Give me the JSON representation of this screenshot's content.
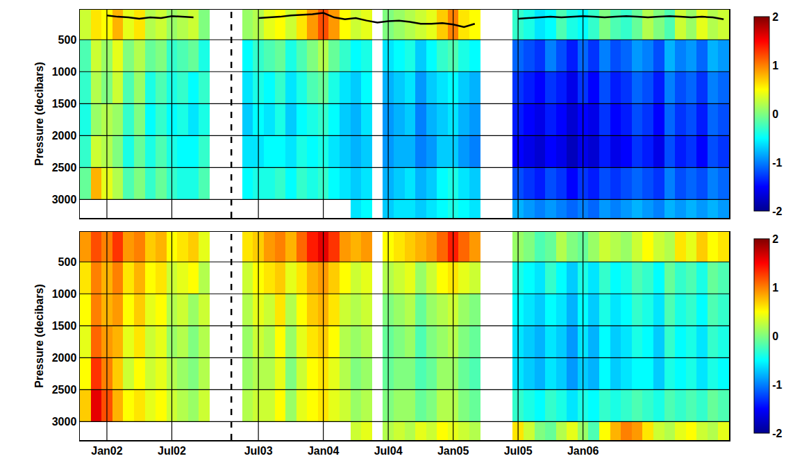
{
  "chart_data": [
    {
      "type": "heatmap",
      "tick_labels": "y",
      "grid": true,
      "ylabel": "Pressure (decibars)",
      "categories": [
        null,
        null,
        "Jan02",
        null,
        null,
        null,
        null,
        null,
        "Jul02",
        null,
        null,
        null,
        null,
        null,
        null,
        null,
        "Jul03",
        null,
        null,
        null,
        null,
        null,
        "Jan04",
        null,
        null,
        null,
        null,
        null,
        "Jul04",
        null,
        null,
        null,
        null,
        null,
        "Jan05",
        null,
        null,
        null,
        null,
        null,
        "Jul05",
        null,
        null,
        null,
        null,
        null,
        "Jan06",
        null,
        null,
        null,
        null,
        null,
        null,
        null,
        null,
        null,
        null,
        null,
        null,
        null
      ],
      "y": [
        250,
        750,
        1250,
        1750,
        2250,
        2750,
        3250
      ],
      "ylim": [
        3290,
        30
      ],
      "yticks": [
        500,
        1000,
        1500,
        2000,
        2500,
        3000
      ],
      "colorbar_range": [
        -2,
        2
      ],
      "colorbar_ticks": [
        -2,
        -1,
        0,
        1,
        2
      ],
      "z": [
        [
          0.3,
          0.6,
          0.5,
          0.8,
          0.4,
          0.6,
          0.2,
          0.3,
          0.1,
          0.2,
          0.3,
          0.0,
          null,
          null,
          null,
          0.1,
          0.2,
          0.4,
          0.5,
          0.3,
          0.6,
          0.9,
          1.2,
          0.9,
          0.5,
          0.3,
          0.4,
          null,
          0.0,
          0.1,
          0.2,
          0.3,
          0.4,
          0.7,
          1.0,
          0.6,
          0.5,
          null,
          null,
          null,
          -0.3,
          -0.4,
          -0.6,
          -0.5,
          -0.2,
          -0.4,
          -0.5,
          -0.3,
          0.0,
          -0.2,
          -0.3,
          -0.1,
          0.2,
          0.0,
          -0.2,
          0.3,
          0.1,
          0.4,
          0.2,
          0.3
        ],
        [
          -0.2,
          0.3,
          0.1,
          0.4,
          0.0,
          0.2,
          -0.1,
          0.0,
          -0.3,
          -0.2,
          -0.1,
          -0.4,
          null,
          null,
          null,
          -0.5,
          -0.3,
          -0.2,
          -0.1,
          -0.4,
          -0.2,
          0.0,
          0.2,
          -0.1,
          -0.3,
          -0.5,
          -0.4,
          null,
          -0.6,
          -0.5,
          -0.4,
          -0.7,
          -0.5,
          -0.3,
          -0.2,
          -0.4,
          -0.5,
          null,
          null,
          null,
          -1.1,
          -1.2,
          -1.3,
          -1.0,
          -1.2,
          -1.4,
          -1.1,
          -1.3,
          -1.0,
          -1.2,
          -1.1,
          -0.9,
          -1.0,
          -1.2,
          -0.8,
          -1.0,
          -0.9,
          -1.1,
          -0.8,
          -0.9
        ],
        [
          -0.3,
          0.2,
          0.0,
          0.3,
          -0.2,
          0.1,
          -0.4,
          -0.2,
          -0.4,
          -0.3,
          -0.5,
          -0.3,
          null,
          null,
          null,
          -0.6,
          -0.4,
          -0.5,
          -0.3,
          -0.6,
          -0.4,
          -0.2,
          -0.1,
          -0.4,
          -0.6,
          -0.7,
          -0.5,
          null,
          -0.8,
          -0.7,
          -0.6,
          -0.9,
          -0.7,
          -0.6,
          -0.5,
          -0.7,
          -0.8,
          null,
          null,
          null,
          -1.3,
          -1.4,
          -1.5,
          -1.3,
          -1.4,
          -1.6,
          -1.3,
          -1.5,
          -1.2,
          -1.4,
          -1.3,
          -1.1,
          -1.2,
          -1.4,
          -1.0,
          -1.2,
          -1.1,
          -1.3,
          -1.0,
          -1.1
        ],
        [
          -0.4,
          0.1,
          0.2,
          0.1,
          -0.3,
          0.0,
          -0.5,
          -0.3,
          -0.5,
          -0.4,
          -0.6,
          -0.4,
          null,
          null,
          null,
          -0.7,
          -0.5,
          -0.6,
          -0.4,
          -0.7,
          -0.5,
          -0.4,
          -0.3,
          -0.5,
          -0.7,
          -0.8,
          -0.6,
          null,
          -0.9,
          -0.8,
          -0.7,
          -1.0,
          -0.8,
          -0.7,
          -0.6,
          -0.8,
          -0.9,
          null,
          null,
          null,
          -1.4,
          -1.5,
          -1.6,
          -1.4,
          -1.5,
          -1.7,
          -1.5,
          -1.6,
          -1.3,
          -1.5,
          -1.4,
          -1.2,
          -1.3,
          -1.5,
          -1.1,
          -1.3,
          -1.2,
          -1.4,
          -1.1,
          -1.2
        ],
        [
          -0.3,
          0.3,
          0.2,
          0.0,
          -0.4,
          -0.1,
          -0.4,
          -0.2,
          -0.4,
          -0.5,
          -0.5,
          -0.3,
          null,
          null,
          null,
          -0.6,
          -0.6,
          -0.5,
          -0.5,
          -0.6,
          -0.4,
          -0.5,
          -0.4,
          -0.6,
          -0.7,
          -0.8,
          -0.7,
          null,
          -0.9,
          -0.8,
          -0.8,
          -1.0,
          -0.9,
          -0.7,
          -0.7,
          -0.9,
          -1.0,
          null,
          null,
          null,
          -1.5,
          -1.6,
          -1.7,
          -1.5,
          -1.6,
          -1.8,
          -1.6,
          -1.7,
          -1.4,
          -1.6,
          -1.5,
          -1.3,
          -1.4,
          -1.6,
          -1.2,
          -1.4,
          -1.3,
          -1.5,
          -1.2,
          -1.3
        ],
        [
          -0.1,
          0.8,
          0.4,
          0.2,
          -0.2,
          0.0,
          -0.3,
          -0.1,
          -0.3,
          -0.4,
          -0.4,
          -0.2,
          null,
          null,
          null,
          -0.5,
          -0.4,
          -0.4,
          -0.3,
          -0.5,
          -0.3,
          -0.4,
          -0.3,
          -0.5,
          -0.6,
          -0.7,
          -0.6,
          null,
          -0.8,
          -0.7,
          -0.6,
          -0.8,
          -0.7,
          -0.5,
          -0.4,
          -0.6,
          -0.7,
          null,
          null,
          null,
          -1.2,
          -1.3,
          -1.4,
          -1.2,
          -1.3,
          -1.5,
          -1.3,
          -1.4,
          -1.2,
          -1.3,
          -1.2,
          -1.1,
          -1.2,
          -1.3,
          -1.0,
          -1.2,
          -1.1,
          -1.2,
          -1.0,
          -1.1
        ],
        [
          null,
          null,
          null,
          null,
          null,
          null,
          null,
          null,
          null,
          null,
          null,
          null,
          null,
          null,
          null,
          null,
          null,
          null,
          null,
          null,
          null,
          null,
          null,
          null,
          null,
          -0.6,
          -0.5,
          null,
          -0.7,
          -0.6,
          -0.6,
          -0.7,
          -0.6,
          -0.5,
          -0.4,
          -0.5,
          -0.6,
          null,
          null,
          null,
          -0.8,
          -0.9,
          -1.0,
          -0.9,
          -1.0,
          -1.1,
          -1.0,
          -1.1,
          -0.9,
          -1.0,
          -0.9,
          -0.8,
          -0.9,
          -1.0,
          -0.8,
          -0.9,
          -0.8,
          -0.9,
          -0.8,
          -0.9
        ]
      ],
      "series": [
        {
          "type": "line",
          "color": "#000000",
          "values": [
            null,
            null,
            120,
            140,
            150,
            170,
            150,
            160,
            130,
            140,
            150,
            null,
            null,
            null,
            null,
            null,
            160,
            150,
            140,
            120,
            110,
            100,
            80,
            150,
            180,
            160,
            200,
            230,
            210,
            200,
            220,
            250,
            250,
            240,
            260,
            300,
            250,
            null,
            null,
            null,
            170,
            160,
            150,
            140,
            150,
            140,
            130,
            140,
            150,
            140,
            130,
            140,
            150,
            140,
            130,
            140,
            150,
            140,
            150,
            180
          ]
        }
      ]
    },
    {
      "type": "heatmap",
      "grid": true,
      "ylabel": "Pressure (decibars)",
      "categories": [
        null,
        null,
        "Jan02",
        null,
        null,
        null,
        null,
        null,
        "Jul02",
        null,
        null,
        null,
        null,
        null,
        null,
        null,
        "Jul03",
        null,
        null,
        null,
        null,
        null,
        "Jan04",
        null,
        null,
        null,
        null,
        null,
        "Jul04",
        null,
        null,
        null,
        null,
        null,
        "Jan05",
        null,
        null,
        null,
        null,
        null,
        "Jul05",
        null,
        null,
        null,
        null,
        null,
        "Jan06",
        null,
        null,
        null,
        null,
        null,
        null,
        null,
        null,
        null,
        null,
        null,
        null,
        null
      ],
      "y": [
        250,
        750,
        1250,
        1750,
        2250,
        2750,
        3250
      ],
      "ylim": [
        3290,
        30
      ],
      "yticks": [
        500,
        1000,
        1500,
        2000,
        2500,
        3000
      ],
      "colorbar_range": [
        -2,
        2
      ],
      "colorbar_ticks": [
        -2,
        -1,
        0,
        1,
        2
      ],
      "z": [
        [
          0.9,
          1.2,
          1.0,
          1.3,
          0.9,
          1.0,
          0.7,
          0.8,
          0.5,
          0.6,
          0.7,
          0.4,
          null,
          null,
          null,
          0.6,
          0.7,
          0.9,
          1.0,
          0.8,
          1.1,
          1.4,
          1.6,
          1.3,
          0.9,
          0.8,
          0.9,
          null,
          0.5,
          0.6,
          0.7,
          0.8,
          0.9,
          1.1,
          1.4,
          1.1,
          0.9,
          null,
          null,
          null,
          0.1,
          0.0,
          -0.2,
          -0.1,
          0.2,
          0.0,
          -0.1,
          0.1,
          0.3,
          0.2,
          0.1,
          0.3,
          0.5,
          0.3,
          0.2,
          0.6,
          0.4,
          0.7,
          0.5,
          0.6
        ],
        [
          0.6,
          1.0,
          0.8,
          1.0,
          0.6,
          0.8,
          0.5,
          0.6,
          0.3,
          0.4,
          0.5,
          0.2,
          null,
          null,
          null,
          0.3,
          0.5,
          0.6,
          0.7,
          0.4,
          0.6,
          0.8,
          0.9,
          0.7,
          0.5,
          0.3,
          0.4,
          null,
          0.2,
          0.3,
          0.4,
          0.1,
          0.3,
          0.5,
          0.6,
          0.4,
          0.3,
          null,
          null,
          null,
          -0.4,
          -0.5,
          -0.6,
          -0.3,
          -0.5,
          -0.7,
          -0.4,
          -0.6,
          -0.3,
          -0.5,
          -0.4,
          -0.2,
          -0.3,
          -0.5,
          -0.1,
          -0.3,
          -0.2,
          -0.4,
          -0.1,
          -0.2
        ],
        [
          0.5,
          1.0,
          0.8,
          0.9,
          0.5,
          0.7,
          0.4,
          0.5,
          0.2,
          0.3,
          0.1,
          0.3,
          null,
          null,
          null,
          0.2,
          0.4,
          0.3,
          0.6,
          0.2,
          0.5,
          0.7,
          0.8,
          0.6,
          0.3,
          0.2,
          0.3,
          null,
          0.0,
          0.1,
          0.2,
          -0.1,
          0.1,
          0.2,
          0.3,
          0.1,
          0.0,
          null,
          null,
          null,
          -0.5,
          -0.6,
          -0.7,
          -0.5,
          -0.6,
          -0.8,
          -0.5,
          -0.7,
          -0.4,
          -0.6,
          -0.5,
          -0.3,
          -0.4,
          -0.6,
          -0.2,
          -0.4,
          -0.3,
          -0.5,
          -0.2,
          -0.3
        ],
        [
          0.4,
          1.1,
          0.9,
          0.8,
          0.4,
          0.6,
          0.3,
          0.4,
          0.1,
          0.2,
          0.0,
          0.2,
          null,
          null,
          null,
          0.1,
          0.3,
          0.2,
          0.5,
          0.1,
          0.4,
          0.6,
          0.7,
          0.5,
          0.2,
          0.1,
          0.2,
          null,
          -0.1,
          0.0,
          0.1,
          -0.2,
          0.0,
          0.1,
          0.2,
          0.0,
          -0.1,
          null,
          null,
          null,
          -0.6,
          -0.7,
          -0.8,
          -0.6,
          -0.7,
          -0.9,
          -0.6,
          -0.8,
          -0.5,
          -0.7,
          -0.6,
          -0.4,
          -0.5,
          -0.7,
          -0.3,
          -0.5,
          -0.4,
          -0.6,
          -0.3,
          -0.4
        ],
        [
          0.5,
          1.3,
          1.0,
          0.7,
          0.3,
          0.5,
          0.3,
          0.4,
          0.2,
          0.1,
          0.0,
          0.2,
          null,
          null,
          null,
          0.1,
          0.2,
          0.2,
          0.4,
          0.0,
          0.3,
          0.5,
          0.6,
          0.4,
          0.2,
          0.0,
          0.1,
          null,
          -0.1,
          0.0,
          0.0,
          -0.2,
          -0.1,
          0.1,
          0.1,
          -0.1,
          -0.2,
          null,
          null,
          null,
          -0.6,
          -0.7,
          -0.8,
          -0.6,
          -0.7,
          -0.9,
          -0.7,
          -0.8,
          -0.5,
          -0.7,
          -0.6,
          -0.5,
          -0.5,
          -0.7,
          -0.4,
          -0.5,
          -0.4,
          -0.6,
          -0.4,
          -0.5
        ],
        [
          0.7,
          1.6,
          1.2,
          0.8,
          0.5,
          0.6,
          0.4,
          0.5,
          0.3,
          0.2,
          0.1,
          0.3,
          null,
          null,
          null,
          0.2,
          0.3,
          0.3,
          0.5,
          0.1,
          0.4,
          0.5,
          0.6,
          0.4,
          0.3,
          0.1,
          0.2,
          null,
          0.0,
          0.1,
          0.1,
          -0.1,
          0.0,
          0.2,
          0.2,
          0.0,
          -0.1,
          null,
          null,
          null,
          -0.3,
          -0.4,
          -0.5,
          -0.3,
          -0.4,
          -0.6,
          -0.4,
          -0.5,
          -0.3,
          -0.4,
          -0.3,
          -0.2,
          -0.3,
          -0.4,
          -0.2,
          -0.3,
          -0.2,
          -0.3,
          -0.1,
          -0.2
        ],
        [
          null,
          null,
          null,
          null,
          null,
          null,
          null,
          null,
          null,
          null,
          null,
          null,
          null,
          null,
          null,
          null,
          null,
          null,
          null,
          null,
          null,
          null,
          null,
          null,
          null,
          0.3,
          0.4,
          null,
          0.2,
          0.3,
          0.2,
          0.4,
          0.3,
          0.5,
          0.4,
          0.3,
          0.2,
          null,
          null,
          null,
          0.6,
          0.3,
          0.0,
          -0.1,
          0.2,
          0.4,
          0.1,
          -0.2,
          0.5,
          0.8,
          1.0,
          0.9,
          0.6,
          0.3,
          0.2,
          0.4,
          0.5,
          0.3,
          0.2,
          0.4
        ]
      ]
    }
  ]
}
